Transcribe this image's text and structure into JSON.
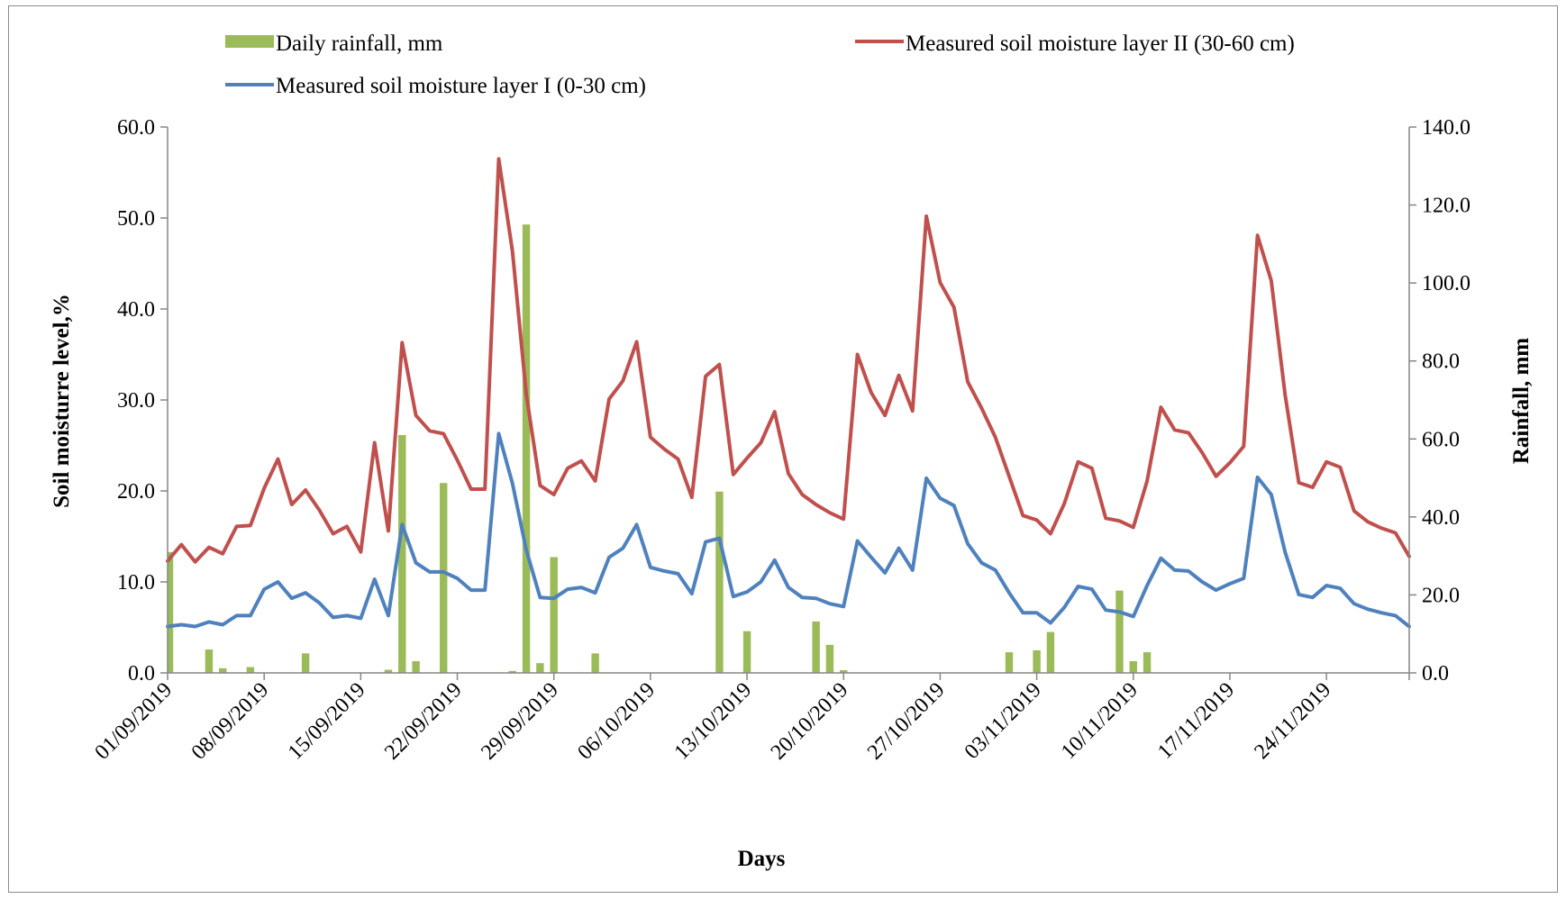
{
  "chart_data": {
    "type": "bar+line",
    "xlabel": "Days",
    "ylabel_left": "Soil moisturre level,%",
    "ylabel_right": "Rainfall, mm",
    "ylim_left": [
      0,
      60
    ],
    "ylim_right": [
      0,
      140
    ],
    "yticks_left": [
      "0.0",
      "10.0",
      "20.0",
      "30.0",
      "40.0",
      "50.0",
      "60.0"
    ],
    "yticks_right": [
      "0.0",
      "20.0",
      "40.0",
      "60.0",
      "80.0",
      "100.0",
      "120.0",
      "140.0"
    ],
    "x_start": "01/09/2019",
    "x_end": "30/11/2019",
    "xticks": [
      "01/09/2019",
      "08/09/2019",
      "15/09/2019",
      "22/09/2019",
      "29/09/2019",
      "06/10/2019",
      "13/10/2019",
      "20/10/2019",
      "27/10/2019",
      "03/11/2019",
      "10/11/2019",
      "17/11/2019",
      "24/11/2019"
    ],
    "grid": false,
    "legend_placement": "top",
    "series": [
      {
        "name": "Daily rainfall, mm",
        "kind": "bar",
        "axis": "right",
        "color": "#9bbb59",
        "values": [
          31,
          0,
          0,
          6,
          1.2,
          0,
          1.5,
          0,
          0,
          0,
          5,
          0,
          0,
          0,
          0,
          0,
          0.8,
          61,
          3,
          0,
          48.7,
          0,
          0,
          0,
          0,
          0.5,
          115,
          2.5,
          29.7,
          0,
          0,
          5,
          0,
          0,
          0,
          0,
          0,
          0,
          0,
          0,
          46.5,
          0,
          10.7,
          0,
          0,
          0,
          0,
          13.2,
          7.2,
          0.7,
          0,
          0,
          0,
          0,
          0,
          0,
          0,
          0,
          0,
          0,
          0,
          5.3,
          0,
          5.8,
          10.5,
          0,
          0,
          0,
          0,
          21.1,
          3,
          5.3,
          0,
          0,
          0,
          0,
          0,
          0,
          0,
          0,
          0,
          0,
          0,
          0,
          0,
          0,
          0,
          0,
          0,
          0,
          0
        ]
      },
      {
        "name": "Measured soil moisture layer II (30-60 cm)",
        "kind": "line",
        "axis": "left",
        "color": "#c0504d",
        "values": [
          12.3,
          14.1,
          12.2,
          13.8,
          13.1,
          16.1,
          16.2,
          20.3,
          23.5,
          18.5,
          20.1,
          17.9,
          15.3,
          16.1,
          13.3,
          25.3,
          15.6,
          36.3,
          28.3,
          26.6,
          26.3,
          23.4,
          20.2,
          20.2,
          56.5,
          46.3,
          30.6,
          20.6,
          19.6,
          22.5,
          23.3,
          21.1,
          30.1,
          32.1,
          36.4,
          25.9,
          24.6,
          23.5,
          19.3,
          32.6,
          33.9,
          21.8,
          23.6,
          25.3,
          28.7,
          21.9,
          19.6,
          18.5,
          17.6,
          16.9,
          35.0,
          30.8,
          28.3,
          32.7,
          28.8,
          50.2,
          42.9,
          40.2,
          32.0,
          29.1,
          25.9,
          21.6,
          17.3,
          16.8,
          15.3,
          18.6,
          23.2,
          22.5,
          17.0,
          16.7,
          16.0,
          21.1,
          29.2,
          26.7,
          26.4,
          24.2,
          21.6,
          23.1,
          24.9,
          48.1,
          43.1,
          30.6,
          20.9,
          20.4,
          23.2,
          22.6,
          17.8,
          16.6,
          15.9,
          15.4,
          12.8
        ]
      },
      {
        "name": "Measured soil moisture layer I (0-30 cm)",
        "kind": "line",
        "axis": "left",
        "color": "#4f81bd",
        "values": [
          5.1,
          5.3,
          5.1,
          5.6,
          5.3,
          6.3,
          6.3,
          9.2,
          10.0,
          8.2,
          8.8,
          7.7,
          6.1,
          6.3,
          6.0,
          10.3,
          6.3,
          16.3,
          12.1,
          11.1,
          11.1,
          10.4,
          9.1,
          9.1,
          26.3,
          20.8,
          13.5,
          8.3,
          8.2,
          9.2,
          9.4,
          8.8,
          12.7,
          13.7,
          16.3,
          11.6,
          11.2,
          10.9,
          8.7,
          14.4,
          14.8,
          8.4,
          8.9,
          10.0,
          12.4,
          9.4,
          8.3,
          8.2,
          7.6,
          7.3,
          14.5,
          12.7,
          11.0,
          13.7,
          11.3,
          21.4,
          19.2,
          18.4,
          14.2,
          12.1,
          11.3,
          8.8,
          6.6,
          6.6,
          5.5,
          7.2,
          9.5,
          9.2,
          6.9,
          6.7,
          6.2,
          9.6,
          12.6,
          11.3,
          11.2,
          10.0,
          9.1,
          9.8,
          10.4,
          21.5,
          19.6,
          13.3,
          8.6,
          8.3,
          9.6,
          9.3,
          7.6,
          7.0,
          6.6,
          6.3,
          5.1
        ]
      }
    ]
  }
}
